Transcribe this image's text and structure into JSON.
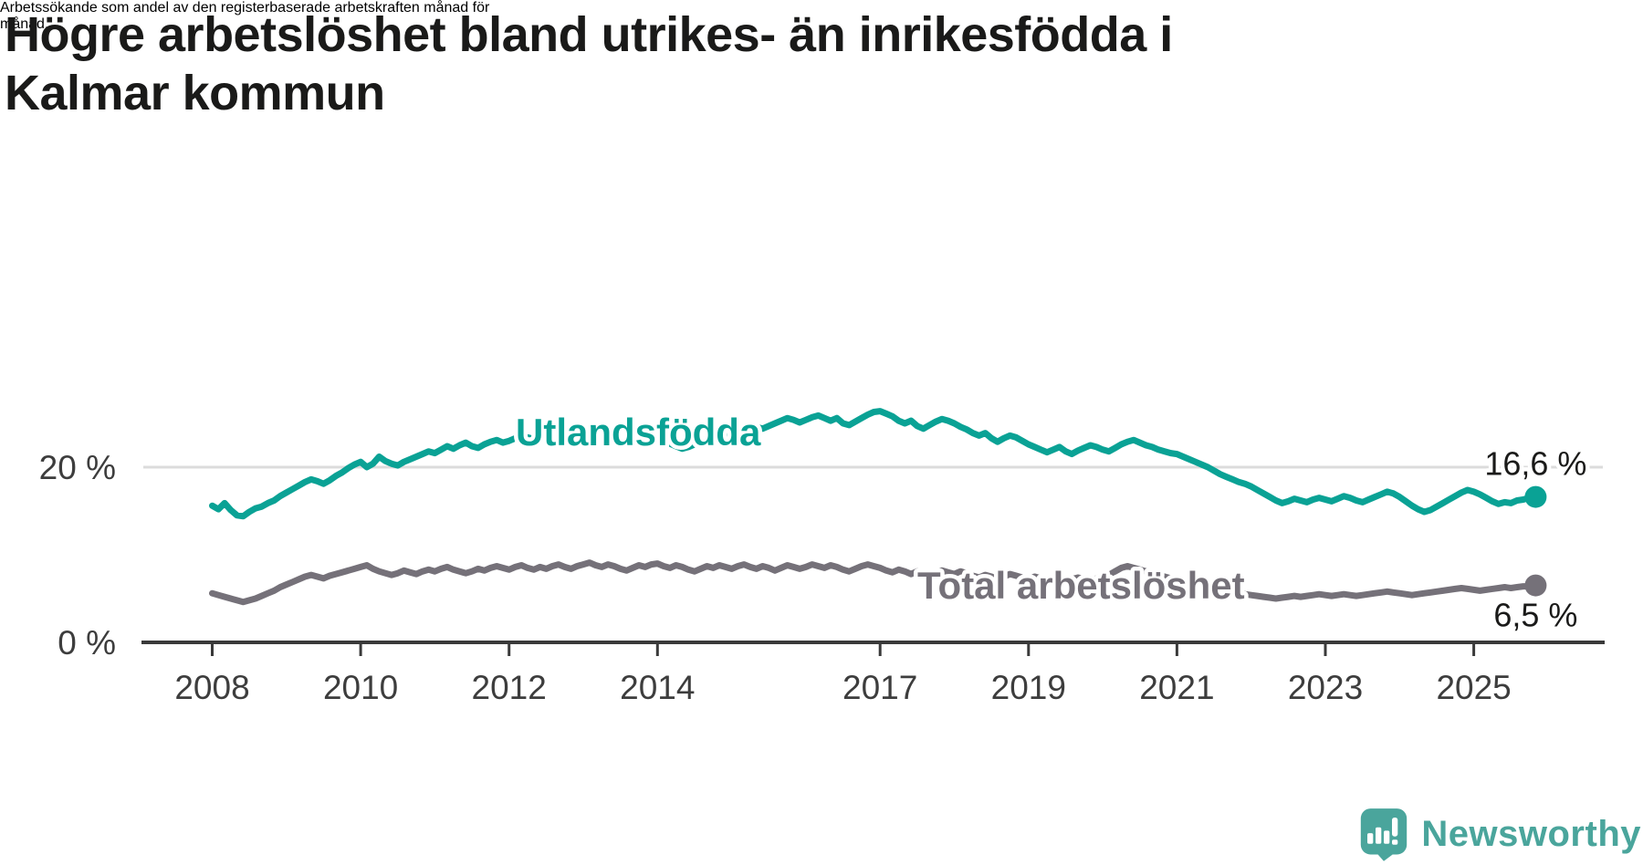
{
  "title_lines": [
    "Högre arbetslöshet bland utrikes- än inrikesfödda i",
    "Kalmar kommun"
  ],
  "subtitle_lines": [
    "Arbetssökande som andel av den registerbaserade arbetskraften månad för",
    "månad."
  ],
  "branding": {
    "logo_text": "Newsworthy",
    "logo_icon": "newsworthy-speech-bubble-bar-chart-icon"
  },
  "colors": {
    "foreign_born_line": "#0aa295",
    "total_line": "#757179",
    "text": "#1a1a19",
    "axis": "#3a3a3a",
    "grid": "#dcdcdc",
    "logo_teal": "#4aa59c"
  },
  "chart_data": {
    "type": "line",
    "unit": "%",
    "frequency": "monthly",
    "start": "2008-01",
    "end": "2025-11",
    "grid": "single-horizontal-gridline-at-20",
    "legend": "inline-series-labels",
    "ylim": [
      0,
      28
    ],
    "x_ticks": [
      2008,
      2010,
      2012,
      2014,
      2017,
      2019,
      2021,
      2023,
      2025
    ],
    "y_ticks": [
      {
        "value": 0,
        "label": "0 %"
      },
      {
        "value": 20,
        "label": "20 %"
      }
    ],
    "series": [
      {
        "name": "Utlandsfödda",
        "color": "#0aa295",
        "end_value": 16.6,
        "end_label": "16,6 %",
        "values": [
          15.6,
          15.2,
          15.9,
          15.1,
          14.5,
          14.4,
          14.9,
          15.3,
          15.5,
          15.9,
          16.2,
          16.7,
          17.1,
          17.5,
          17.9,
          18.3,
          18.6,
          18.4,
          18.1,
          18.5,
          19.0,
          19.4,
          19.9,
          20.3,
          20.6,
          20.0,
          20.4,
          21.2,
          20.7,
          20.4,
          20.2,
          20.6,
          20.9,
          21.2,
          21.5,
          21.8,
          21.6,
          22.0,
          22.4,
          22.1,
          22.5,
          22.8,
          22.4,
          22.2,
          22.6,
          22.9,
          23.1,
          22.8,
          23.0,
          23.3,
          23.1,
          23.4,
          23.2,
          23.5,
          23.3,
          23.6,
          23.4,
          23.2,
          23.5,
          23.7,
          23.9,
          24.2,
          24.4,
          24.0,
          23.7,
          23.3,
          22.9,
          23.2,
          23.6,
          23.4,
          23.7,
          23.5,
          23.3,
          23.0,
          22.7,
          22.4,
          22.1,
          22.3,
          22.6,
          22.9,
          23.3,
          23.1,
          23.4,
          23.6,
          23.8,
          24.1,
          23.9,
          24.3,
          24.6,
          24.4,
          24.7,
          25.0,
          25.3,
          25.6,
          25.4,
          25.1,
          25.4,
          25.7,
          25.9,
          25.6,
          25.3,
          25.6,
          25.0,
          24.8,
          25.2,
          25.6,
          26.0,
          26.3,
          26.4,
          26.1,
          25.8,
          25.3,
          25.0,
          25.3,
          24.7,
          24.4,
          24.8,
          25.2,
          25.5,
          25.3,
          25.0,
          24.6,
          24.3,
          23.9,
          23.6,
          23.9,
          23.3,
          22.9,
          23.3,
          23.6,
          23.4,
          23.0,
          22.6,
          22.3,
          22.0,
          21.7,
          22.0,
          22.3,
          21.8,
          21.5,
          21.9,
          22.2,
          22.5,
          22.3,
          22.0,
          21.8,
          22.2,
          22.6,
          22.9,
          23.1,
          22.8,
          22.5,
          22.3,
          22.0,
          21.8,
          21.6,
          21.5,
          21.2,
          20.9,
          20.6,
          20.3,
          20.0,
          19.6,
          19.2,
          18.9,
          18.6,
          18.3,
          18.1,
          17.8,
          17.4,
          17.0,
          16.6,
          16.2,
          15.9,
          16.1,
          16.4,
          16.2,
          16.0,
          16.3,
          16.5,
          16.3,
          16.1,
          16.4,
          16.7,
          16.5,
          16.2,
          16.0,
          16.3,
          16.6,
          16.9,
          17.2,
          17.0,
          16.6,
          16.1,
          15.6,
          15.2,
          14.9,
          15.1,
          15.5,
          15.9,
          16.3,
          16.7,
          17.1,
          17.4,
          17.2,
          16.9,
          16.5,
          16.1,
          15.8,
          16.0,
          15.9,
          16.2,
          16.3,
          16.5,
          16.6
        ]
      },
      {
        "name": "Total arbetslöshet",
        "color": "#757179",
        "end_value": 6.5,
        "end_label": "6,5 %",
        "values": [
          5.6,
          5.4,
          5.2,
          5.0,
          4.8,
          4.6,
          4.8,
          5.0,
          5.3,
          5.6,
          5.9,
          6.3,
          6.6,
          6.9,
          7.2,
          7.5,
          7.7,
          7.5,
          7.3,
          7.6,
          7.8,
          8.0,
          8.2,
          8.4,
          8.6,
          8.8,
          8.4,
          8.1,
          7.9,
          7.7,
          7.9,
          8.2,
          8.0,
          7.8,
          8.1,
          8.3,
          8.1,
          8.4,
          8.6,
          8.3,
          8.1,
          7.9,
          8.1,
          8.4,
          8.2,
          8.5,
          8.7,
          8.5,
          8.3,
          8.6,
          8.8,
          8.5,
          8.3,
          8.6,
          8.4,
          8.7,
          8.9,
          8.6,
          8.4,
          8.7,
          8.9,
          9.1,
          8.8,
          8.6,
          8.9,
          8.7,
          8.4,
          8.2,
          8.5,
          8.8,
          8.6,
          8.9,
          9.0,
          8.7,
          8.5,
          8.8,
          8.6,
          8.3,
          8.1,
          8.4,
          8.7,
          8.5,
          8.8,
          8.6,
          8.4,
          8.7,
          8.9,
          8.6,
          8.4,
          8.7,
          8.5,
          8.2,
          8.5,
          8.8,
          8.6,
          8.4,
          8.6,
          8.9,
          8.7,
          8.5,
          8.8,
          8.6,
          8.3,
          8.1,
          8.4,
          8.7,
          8.9,
          8.7,
          8.5,
          8.2,
          8.0,
          8.3,
          8.1,
          7.8,
          8.1,
          7.9,
          7.6,
          7.9,
          8.2,
          8.0,
          7.8,
          8.1,
          7.9,
          7.6,
          7.4,
          7.7,
          7.5,
          7.2,
          7.5,
          7.8,
          7.6,
          7.4,
          7.2,
          7.5,
          7.3,
          7.0,
          7.3,
          7.1,
          6.9,
          7.2,
          7.4,
          7.2,
          7.0,
          7.3,
          7.5,
          7.7,
          8.1,
          8.5,
          8.7,
          8.5,
          8.3,
          8.1,
          7.9,
          7.7,
          7.5,
          7.3,
          7.1,
          6.9,
          6.7,
          6.5,
          6.3,
          6.1,
          6.0,
          5.9,
          5.8,
          5.7,
          5.6,
          5.5,
          5.4,
          5.3,
          5.2,
          5.1,
          5.0,
          5.1,
          5.2,
          5.3,
          5.2,
          5.3,
          5.4,
          5.5,
          5.4,
          5.3,
          5.4,
          5.5,
          5.4,
          5.3,
          5.4,
          5.5,
          5.6,
          5.7,
          5.8,
          5.7,
          5.6,
          5.5,
          5.4,
          5.5,
          5.6,
          5.7,
          5.8,
          5.9,
          6.0,
          6.1,
          6.2,
          6.1,
          6.0,
          5.9,
          6.0,
          6.1,
          6.2,
          6.3,
          6.2,
          6.3,
          6.4,
          6.4,
          6.5
        ]
      }
    ]
  }
}
